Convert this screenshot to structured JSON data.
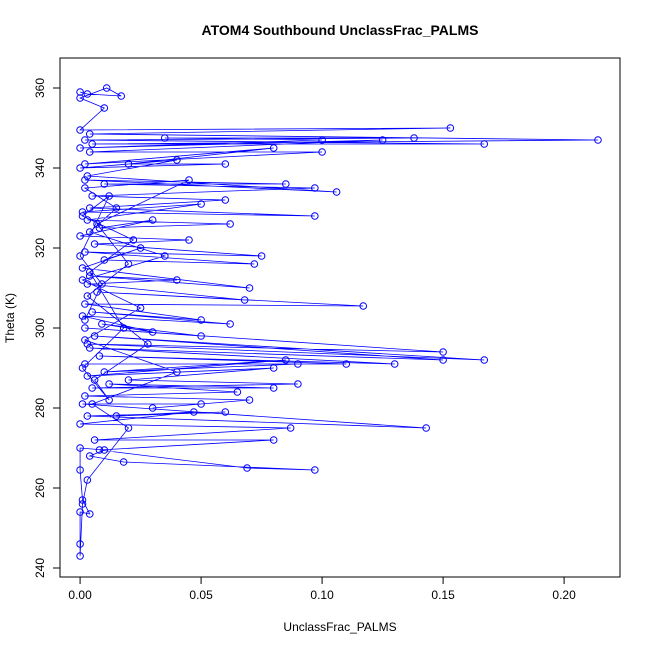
{
  "chart_data": {
    "type": "scatter",
    "title": "ATOM4 Southbound UnclassFrac_PALMS",
    "x_label": "UnclassFrac_PALMS",
    "y_label": "Theta (K)",
    "color": "#0000ff",
    "connect": true,
    "xlim": [
      -0.0083,
      0.2231
    ],
    "ylim": [
      237.75,
      367.5
    ],
    "xticks": [
      {
        "value": 0,
        "label": "0.00"
      },
      {
        "value": 0.05,
        "label": "0.05"
      },
      {
        "value": 0.1,
        "label": "0.10"
      },
      {
        "value": 0.15,
        "label": "0.15"
      },
      {
        "value": 0.2,
        "label": "0.20"
      }
    ],
    "yticks": [
      240,
      260,
      280,
      300,
      320,
      340,
      360
    ],
    "x": [
      0,
      0.003,
      0.017,
      0.011,
      0,
      0.01,
      0,
      0.153,
      0.004,
      0.214,
      0.005,
      0.167,
      0.002,
      0.138,
      0.035,
      0.1,
      0,
      0.125,
      0.004,
      0.1,
      0.002,
      0.08,
      0.02,
      0.06,
      0,
      0.04,
      0.003,
      0.106,
      0.002,
      0.085,
      0.01,
      0.097,
      0.005,
      0.06,
      0.004,
      0.097,
      0.001,
      0.05,
      0.003,
      0.062,
      0.008,
      0.03,
      0,
      0.045,
      0.006,
      0.075,
      0.002,
      0.072,
      0.01,
      0.025,
      0.001,
      0.07,
      0.004,
      0.04,
      0.003,
      0.068,
      0.007,
      0.117,
      0.002,
      0.05,
      0.005,
      0.062,
      0.001,
      0.03,
      0.009,
      0.05,
      0.002,
      0.15,
      0.003,
      0.167,
      0.006,
      0.15,
      0.004,
      0.13,
      0.008,
      0.11,
      0.002,
      0.09,
      0.01,
      0.085,
      0.003,
      0.08,
      0.02,
      0.09,
      0.005,
      0.08,
      0.012,
      0.065,
      0.002,
      0.07,
      0.03,
      0.05,
      0.001,
      0.143,
      0.003,
      0.06,
      0.015,
      0.047,
      0,
      0.087,
      0.006,
      0.08,
      0.008,
      0.069,
      0.097,
      0.018,
      0.004,
      0.01,
      0,
      0,
      0.001,
      0.004,
      0,
      0,
      0,
      0.001,
      0.003,
      0.02,
      0.005,
      0.04,
      0.002,
      0.025,
      0.001,
      0.035,
      0.004,
      0.015,
      0.002,
      0.045,
      0.007,
      0.02,
      0.003,
      0.028,
      0.006,
      0.012,
      0.001,
      0.018,
      0.004,
      0.022,
      0.001,
      0.012,
      0,
      0.009,
      0.002
    ],
    "values": [
      359,
      358.5,
      358,
      360,
      357.5,
      355,
      349.5,
      350,
      348.5,
      347,
      346,
      346,
      347,
      347.5,
      347.5,
      347,
      345,
      347,
      344,
      344,
      341,
      345,
      341,
      341,
      340,
      342,
      338,
      334,
      337,
      336,
      336,
      335,
      333,
      332,
      330,
      328,
      329,
      331,
      327,
      326,
      325,
      327,
      323,
      322,
      321,
      318,
      319,
      316,
      317,
      320,
      315,
      310,
      313,
      312,
      311,
      307,
      309,
      305.5,
      306,
      302,
      304,
      301,
      303,
      299,
      301,
      298,
      300,
      294,
      296,
      292,
      298,
      292,
      295,
      291,
      293,
      291,
      291,
      291,
      289,
      292,
      288,
      290,
      287,
      286,
      285,
      285,
      286,
      284,
      283,
      282,
      280,
      281,
      281,
      275,
      278,
      279,
      278,
      279,
      276,
      275,
      272,
      272,
      269.5,
      265,
      264.5,
      266.5,
      268,
      269.5,
      270,
      264.5,
      257,
      253.5,
      254,
      246,
      243,
      256,
      262,
      275,
      281,
      289,
      297,
      305,
      312,
      318,
      324,
      330,
      335,
      337,
      326,
      316,
      308,
      296,
      287,
      282,
      290,
      300,
      314,
      322,
      328,
      333,
      318,
      311,
      302
    ]
  }
}
